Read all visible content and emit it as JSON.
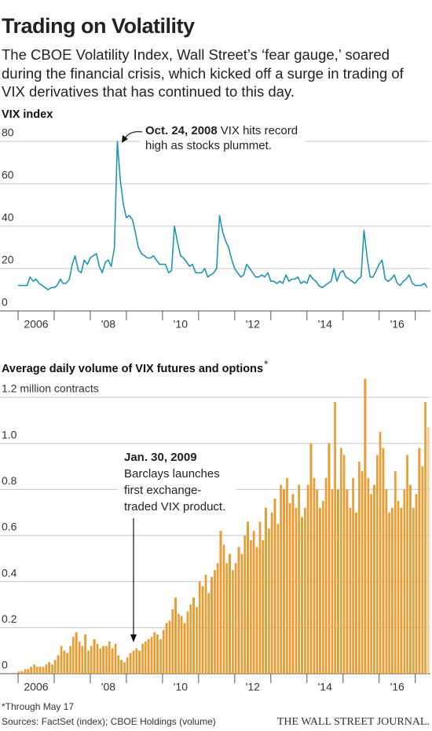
{
  "header": {
    "title": "Trading on Volatility",
    "subtitle": "The CBOE Volatility Index, Wall Street’s ‘fear gauge,’ soared during the financial crisis, which kicked off a surge in trading of VIX derivatives that has continued to this day."
  },
  "chart_data": [
    {
      "type": "line",
      "title": "VIX index",
      "color": "#1f95b0",
      "annotation": {
        "title": "Oct. 24, 2008",
        "lines": [
          "VIX hits record",
          "high as stocks plummet."
        ]
      },
      "x": [
        2006,
        2006.08,
        2006.17,
        2006.25,
        2006.33,
        2006.42,
        2006.5,
        2006.58,
        2006.67,
        2006.75,
        2006.83,
        2006.92,
        2007,
        2007.08,
        2007.17,
        2007.25,
        2007.33,
        2007.42,
        2007.5,
        2007.58,
        2007.67,
        2007.75,
        2007.83,
        2007.92,
        2008,
        2008.08,
        2008.17,
        2008.25,
        2008.33,
        2008.42,
        2008.5,
        2008.58,
        2008.67,
        2008.75,
        2008.83,
        2008.92,
        2009,
        2009.08,
        2009.17,
        2009.25,
        2009.33,
        2009.42,
        2009.5,
        2009.58,
        2009.67,
        2009.75,
        2009.83,
        2009.92,
        2010,
        2010.08,
        2010.17,
        2010.25,
        2010.33,
        2010.42,
        2010.5,
        2010.58,
        2010.67,
        2010.75,
        2010.83,
        2010.92,
        2011,
        2011.08,
        2011.17,
        2011.25,
        2011.33,
        2011.42,
        2011.5,
        2011.58,
        2011.67,
        2011.75,
        2011.83,
        2011.92,
        2012,
        2012.08,
        2012.17,
        2012.25,
        2012.33,
        2012.42,
        2012.5,
        2012.58,
        2012.67,
        2012.75,
        2012.83,
        2012.92,
        2013,
        2013.08,
        2013.17,
        2013.25,
        2013.33,
        2013.42,
        2013.5,
        2013.58,
        2013.67,
        2013.75,
        2013.83,
        2013.92,
        2014,
        2014.08,
        2014.17,
        2014.25,
        2014.33,
        2014.42,
        2014.5,
        2014.58,
        2014.67,
        2014.75,
        2014.83,
        2014.92,
        2015,
        2015.08,
        2015.17,
        2015.25,
        2015.33,
        2015.42,
        2015.5,
        2015.58,
        2015.67,
        2015.75,
        2015.83,
        2015.92,
        2016,
        2016.08,
        2016.17,
        2016.25,
        2016.33,
        2016.42,
        2016.5,
        2016.58,
        2016.67,
        2016.75,
        2016.83,
        2016.92,
        2017,
        2017.08,
        2017.17,
        2017.25,
        2017.33
      ],
      "values": [
        12,
        12,
        12,
        12,
        16,
        14,
        15,
        13,
        12,
        11,
        10,
        11,
        11,
        12,
        15,
        13,
        13,
        15,
        22,
        26,
        19,
        18,
        24,
        22,
        25,
        26,
        27,
        21,
        18,
        23,
        24,
        21,
        30,
        80,
        62,
        50,
        44,
        45,
        43,
        37,
        30,
        27,
        26,
        25,
        25,
        26,
        24,
        22,
        22,
        22,
        18,
        19,
        40,
        32,
        26,
        25,
        23,
        21,
        22,
        18,
        18,
        18,
        20,
        16,
        17,
        18,
        20,
        45,
        37,
        33,
        30,
        24,
        20,
        18,
        16,
        17,
        22,
        20,
        18,
        16,
        16,
        17,
        16,
        18,
        14,
        14,
        13,
        14,
        13,
        17,
        14,
        15,
        15,
        16,
        13,
        14,
        13,
        17,
        15,
        14,
        12,
        11,
        12,
        13,
        14,
        20,
        14,
        18,
        19,
        16,
        15,
        14,
        13,
        15,
        16,
        38,
        25,
        16,
        16,
        19,
        22,
        24,
        15,
        14,
        15,
        17,
        13,
        12,
        14,
        15,
        17,
        13,
        12,
        12,
        12,
        13,
        11
      ],
      "xlim": [
        2006,
        2017.42
      ],
      "xticks": [
        {
          "value": 2006,
          "label": "2006"
        },
        {
          "value": 2008,
          "label": "'08"
        },
        {
          "value": 2010,
          "label": "'10"
        },
        {
          "value": 2012,
          "label": "'12"
        },
        {
          "value": 2014,
          "label": "'14"
        },
        {
          "value": 2016,
          "label": "'16"
        }
      ],
      "ylim": [
        0,
        85
      ],
      "yticks": [
        0,
        20,
        40,
        60,
        80
      ],
      "grid": true
    },
    {
      "type": "bar",
      "title": "Average daily volume of VIX futures and options",
      "title_note": "*",
      "color": "#e99c31",
      "last_color": "#f6cd8d",
      "annotation": {
        "title": "Jan. 30, 2009",
        "lines": [
          "Barclays launches",
          "first exchange-",
          "traded VIX product."
        ]
      },
      "x": [
        2006,
        2006.08,
        2006.17,
        2006.25,
        2006.33,
        2006.42,
        2006.5,
        2006.58,
        2006.67,
        2006.75,
        2006.83,
        2006.92,
        2007,
        2007.08,
        2007.17,
        2007.25,
        2007.33,
        2007.42,
        2007.5,
        2007.58,
        2007.67,
        2007.75,
        2007.83,
        2007.92,
        2008,
        2008.08,
        2008.17,
        2008.25,
        2008.33,
        2008.42,
        2008.5,
        2008.58,
        2008.67,
        2008.75,
        2008.83,
        2008.92,
        2009,
        2009.08,
        2009.17,
        2009.25,
        2009.33,
        2009.42,
        2009.5,
        2009.58,
        2009.67,
        2009.75,
        2009.83,
        2009.92,
        2010,
        2010.08,
        2010.17,
        2010.25,
        2010.33,
        2010.42,
        2010.5,
        2010.58,
        2010.67,
        2010.75,
        2010.83,
        2010.92,
        2011,
        2011.08,
        2011.17,
        2011.25,
        2011.33,
        2011.42,
        2011.5,
        2011.58,
        2011.67,
        2011.75,
        2011.83,
        2011.92,
        2012,
        2012.08,
        2012.17,
        2012.25,
        2012.33,
        2012.42,
        2012.5,
        2012.58,
        2012.67,
        2012.75,
        2012.83,
        2012.92,
        2013,
        2013.08,
        2013.17,
        2013.25,
        2013.33,
        2013.42,
        2013.5,
        2013.58,
        2013.67,
        2013.75,
        2013.83,
        2013.92,
        2014,
        2014.08,
        2014.17,
        2014.25,
        2014.33,
        2014.42,
        2014.5,
        2014.58,
        2014.67,
        2014.75,
        2014.83,
        2014.92,
        2015,
        2015.08,
        2015.17,
        2015.25,
        2015.33,
        2015.42,
        2015.5,
        2015.58,
        2015.67,
        2015.75,
        2015.83,
        2015.92,
        2016,
        2016.08,
        2016.17,
        2016.25,
        2016.33,
        2016.42,
        2016.5,
        2016.58,
        2016.67,
        2016.75,
        2016.83,
        2016.92,
        2017,
        2017.08,
        2017.17,
        2017.25,
        2017.33
      ],
      "values": [
        0.01,
        0.01,
        0.02,
        0.02,
        0.03,
        0.04,
        0.03,
        0.03,
        0.03,
        0.04,
        0.05,
        0.04,
        0.06,
        0.08,
        0.12,
        0.1,
        0.09,
        0.12,
        0.16,
        0.18,
        0.14,
        0.12,
        0.17,
        0.1,
        0.12,
        0.15,
        0.13,
        0.11,
        0.12,
        0.12,
        0.14,
        0.11,
        0.13,
        0.08,
        0.06,
        0.05,
        0.07,
        0.09,
        0.1,
        0.11,
        0.1,
        0.13,
        0.14,
        0.15,
        0.16,
        0.18,
        0.17,
        0.15,
        0.19,
        0.22,
        0.23,
        0.28,
        0.33,
        0.26,
        0.25,
        0.22,
        0.27,
        0.3,
        0.33,
        0.29,
        0.4,
        0.38,
        0.43,
        0.35,
        0.42,
        0.45,
        0.48,
        0.62,
        0.56,
        0.48,
        0.52,
        0.45,
        0.48,
        0.55,
        0.52,
        0.6,
        0.66,
        0.58,
        0.62,
        0.55,
        0.66,
        0.58,
        0.72,
        0.63,
        0.7,
        0.76,
        0.65,
        0.82,
        0.8,
        0.85,
        0.74,
        0.78,
        0.72,
        0.82,
        0.68,
        0.72,
        0.82,
        1,
        0.85,
        0.8,
        0.72,
        0.75,
        0.85,
        1,
        0.8,
        1.18,
        0.8,
        0.98,
        0.95,
        0.8,
        0.72,
        0.85,
        0.7,
        0.92,
        0.88,
        1.28,
        0.85,
        0.78,
        0.82,
        0.95,
        1.05,
        0.98,
        0.8,
        0.7,
        0.72,
        0.88,
        0.75,
        0.72,
        0.8,
        0.95,
        0.82,
        0.72,
        0.78,
        0.98,
        0.9,
        1.18,
        1.07
      ],
      "xlim": [
        2006,
        2017.42
      ],
      "xticks": [
        {
          "value": 2006,
          "label": "2006"
        },
        {
          "value": 2008,
          "label": "'08"
        },
        {
          "value": 2010,
          "label": "'10"
        },
        {
          "value": 2012,
          "label": "'12"
        },
        {
          "value": 2014,
          "label": "'14"
        },
        {
          "value": 2016,
          "label": "'16"
        }
      ],
      "ylim": [
        0,
        1.3
      ],
      "yticks": [
        0,
        0.2,
        0.4,
        0.6,
        0.8,
        {
          "value": 1,
          "label": "1.0"
        },
        {
          "value": 1.2,
          "label": "1.2 million contracts"
        }
      ],
      "grid": true
    }
  ],
  "footer": {
    "note": "*Through May 17",
    "sources": "Sources: FactSet (index); CBOE Holdings (volume)",
    "credit": "THE WALL STREET JOURNAL."
  }
}
